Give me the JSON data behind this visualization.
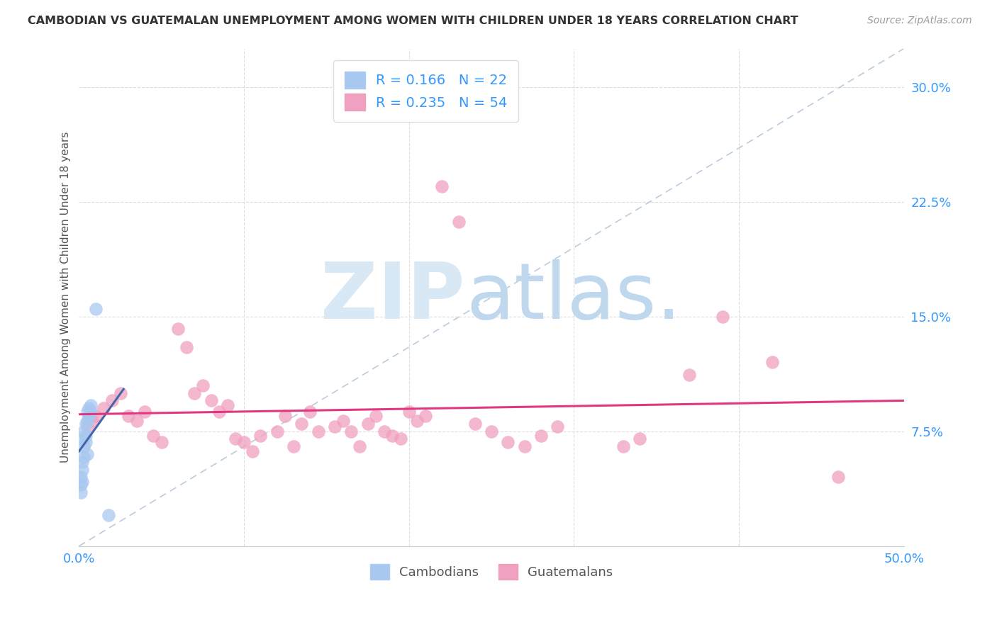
{
  "title": "CAMBODIAN VS GUATEMALAN UNEMPLOYMENT AMONG WOMEN WITH CHILDREN UNDER 18 YEARS CORRELATION CHART",
  "source": "Source: ZipAtlas.com",
  "ylabel": "Unemployment Among Women with Children Under 18 years",
  "xlim": [
    0,
    0.5
  ],
  "ylim": [
    0,
    0.325
  ],
  "xticks": [
    0.0,
    0.1,
    0.2,
    0.3,
    0.4,
    0.5
  ],
  "yticks": [
    0.0,
    0.075,
    0.15,
    0.225,
    0.3
  ],
  "ytick_labels": [
    "",
    "7.5%",
    "15.0%",
    "22.5%",
    "30.0%"
  ],
  "xtick_labels": [
    "0.0%",
    "",
    "",
    "",
    "",
    "50.0%"
  ],
  "R_cambodian": 0.166,
  "N_cambodian": 22,
  "R_guatemalan": 0.235,
  "N_guatemalan": 54,
  "cambodian_color": "#A8C8F0",
  "guatemalan_color": "#F0A0C0",
  "trend_cambodian_color": "#4466AA",
  "trend_guatemalan_color": "#E03880",
  "diag_line_color": "#BBCCDD",
  "background_color": "#FFFFFF",
  "cambodian_x": [
    0.001,
    0.001,
    0.001,
    0.002,
    0.002,
    0.002,
    0.003,
    0.003,
    0.003,
    0.003,
    0.004,
    0.004,
    0.004,
    0.005,
    0.005,
    0.005,
    0.006,
    0.006,
    0.007,
    0.007,
    0.01,
    0.018
  ],
  "cambodian_y": [
    0.045,
    0.04,
    0.035,
    0.055,
    0.05,
    0.042,
    0.075,
    0.07,
    0.065,
    0.058,
    0.08,
    0.072,
    0.068,
    0.088,
    0.082,
    0.06,
    0.09,
    0.085,
    0.092,
    0.088,
    0.155,
    0.02
  ],
  "guatemalan_x": [
    0.005,
    0.008,
    0.01,
    0.015,
    0.02,
    0.025,
    0.03,
    0.035,
    0.04,
    0.045,
    0.05,
    0.06,
    0.065,
    0.07,
    0.075,
    0.08,
    0.085,
    0.09,
    0.095,
    0.1,
    0.105,
    0.11,
    0.12,
    0.125,
    0.13,
    0.135,
    0.14,
    0.145,
    0.155,
    0.16,
    0.165,
    0.17,
    0.175,
    0.18,
    0.185,
    0.19,
    0.195,
    0.2,
    0.205,
    0.21,
    0.22,
    0.23,
    0.24,
    0.25,
    0.26,
    0.27,
    0.28,
    0.29,
    0.33,
    0.34,
    0.37,
    0.39,
    0.42,
    0.46
  ],
  "guatemalan_y": [
    0.078,
    0.082,
    0.085,
    0.09,
    0.095,
    0.1,
    0.085,
    0.082,
    0.088,
    0.072,
    0.068,
    0.142,
    0.13,
    0.1,
    0.105,
    0.095,
    0.088,
    0.092,
    0.07,
    0.068,
    0.062,
    0.072,
    0.075,
    0.085,
    0.065,
    0.08,
    0.088,
    0.075,
    0.078,
    0.082,
    0.075,
    0.065,
    0.08,
    0.085,
    0.075,
    0.072,
    0.07,
    0.088,
    0.082,
    0.085,
    0.235,
    0.212,
    0.08,
    0.075,
    0.068,
    0.065,
    0.072,
    0.078,
    0.065,
    0.07,
    0.112,
    0.15,
    0.12,
    0.045
  ]
}
